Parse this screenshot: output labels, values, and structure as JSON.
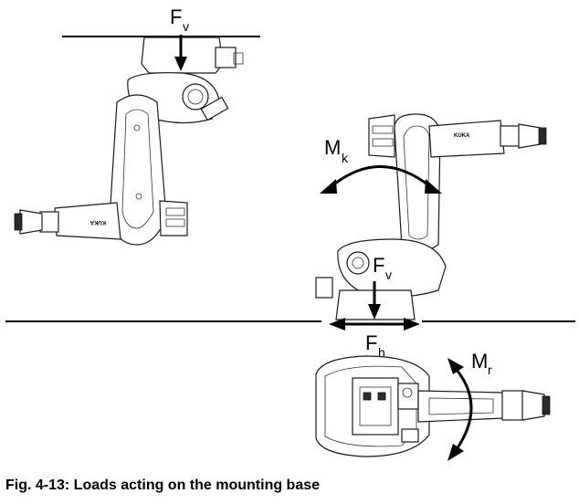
{
  "labels": {
    "fv_top_main": "F",
    "fv_top_sub": "v",
    "mk_main": "M",
    "mk_sub": "k",
    "fv_floor_main": "F",
    "fv_floor_sub": "v",
    "fh_main": "F",
    "fh_sub": "h",
    "mr_main": "M",
    "mr_sub": "r",
    "robot_brand": "KUKA"
  },
  "caption": "Fig. 4-13: Loads acting on the mounting base"
}
